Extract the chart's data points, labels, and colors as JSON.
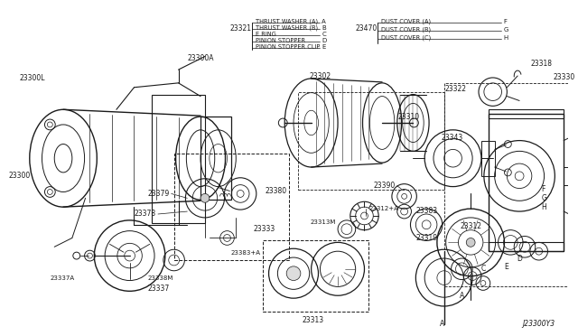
{
  "bg_color": "#ffffff",
  "line_color": "#1a1a1a",
  "text_color": "#1a1a1a",
  "figsize": [
    6.4,
    3.72
  ],
  "dpi": 100,
  "diagram_id": "J23300Y3",
  "legend_left_items": [
    [
      "THRUST WASHER (A)",
      "A"
    ],
    [
      "THRUST WASHER (B)",
      "B"
    ],
    [
      "E RING",
      "C"
    ],
    [
      "PINION STOPPER",
      "D"
    ],
    [
      "PINION STOPPER CLIP",
      "E"
    ]
  ],
  "legend_right_items": [
    [
      "DUST COVER (A)",
      "F"
    ],
    [
      "DUST COVER (B)",
      "G"
    ],
    [
      "DUST COVER (C)",
      "H"
    ]
  ]
}
